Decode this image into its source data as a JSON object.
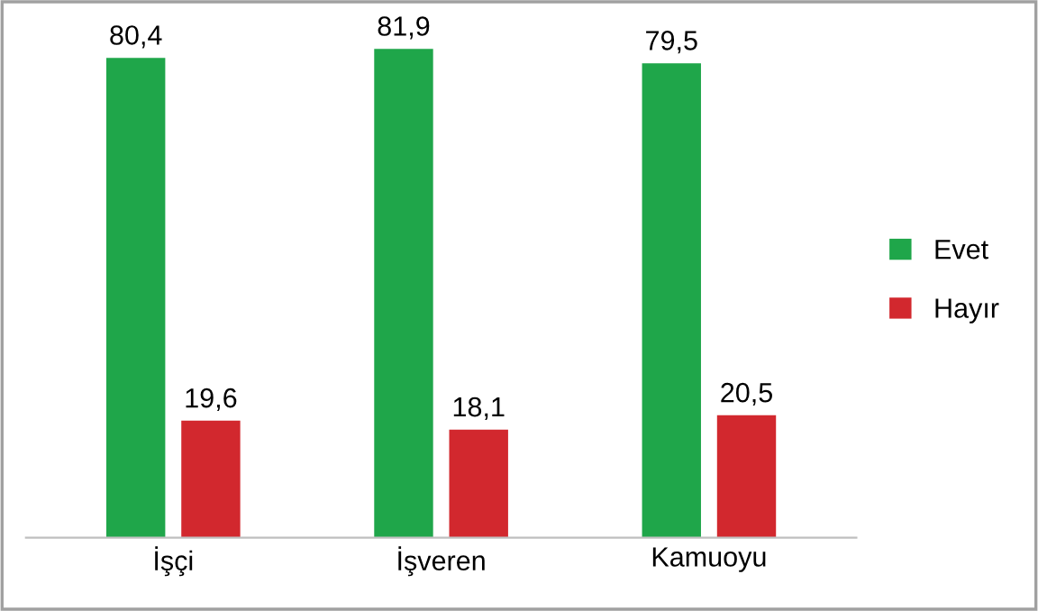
{
  "chart_data": {
    "type": "bar",
    "categories": [
      "İşçi",
      "İşveren",
      "Kamuoyu"
    ],
    "series": [
      {
        "name": "Evet",
        "color": "#1fa64a",
        "values": [
          80.4,
          81.9,
          79.5
        ],
        "value_labels": [
          "80,4",
          "81,9",
          "79,5"
        ]
      },
      {
        "name": "Hayır",
        "color": "#d2282e",
        "values": [
          19.6,
          18.1,
          20.5
        ],
        "value_labels": [
          "19,6",
          "18,1",
          "20,5"
        ]
      }
    ],
    "legend": "right"
  }
}
